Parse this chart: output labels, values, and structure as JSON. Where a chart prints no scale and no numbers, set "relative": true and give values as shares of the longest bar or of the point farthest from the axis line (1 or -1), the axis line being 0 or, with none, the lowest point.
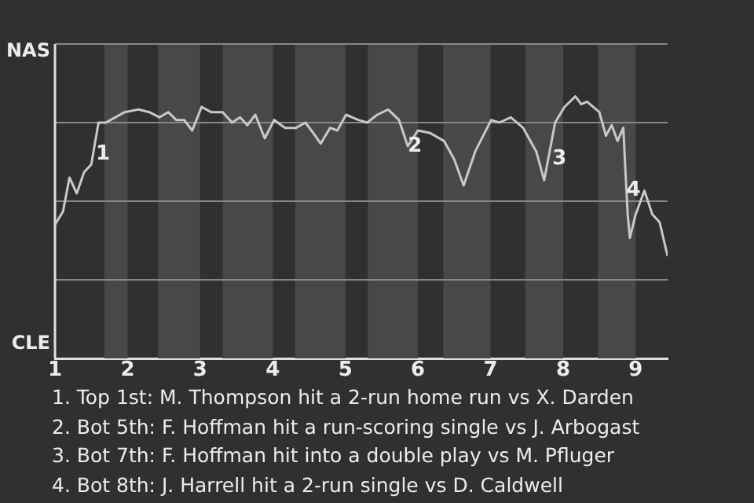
{
  "chart_data": {
    "type": "line",
    "relative": true,
    "x": [
      1.0,
      1.11,
      1.2,
      1.3,
      1.4,
      1.5,
      1.6,
      1.7,
      1.83,
      1.96,
      2.15,
      2.3,
      2.44,
      2.56,
      2.67,
      2.78,
      2.89,
      3.02,
      3.15,
      3.31,
      3.44,
      3.55,
      3.65,
      3.76,
      3.89,
      4.02,
      4.17,
      4.32,
      4.45,
      4.56,
      4.66,
      4.79,
      4.89,
      5.01,
      5.18,
      5.3,
      5.44,
      5.59,
      5.74,
      5.86,
      6.0,
      6.17,
      6.36,
      6.5,
      6.63,
      6.79,
      7.01,
      7.12,
      7.28,
      7.45,
      7.63,
      7.74,
      7.89,
      8.02,
      8.17,
      8.25,
      8.33,
      8.5,
      8.59,
      8.67,
      8.75,
      8.83,
      8.86,
      8.89,
      8.92,
      9.0,
      9.12,
      9.23,
      9.33,
      9.44
    ],
    "series": [
      {
        "color": "#c8c8c8",
        "values": [
          0.51,
          0.56,
          0.69,
          0.63,
          0.71,
          0.74,
          0.9,
          0.9,
          0.92,
          0.94,
          0.95,
          0.94,
          0.92,
          0.94,
          0.91,
          0.91,
          0.87,
          0.96,
          0.94,
          0.94,
          0.9,
          0.92,
          0.89,
          0.93,
          0.84,
          0.91,
          0.88,
          0.88,
          0.9,
          0.86,
          0.82,
          0.88,
          0.87,
          0.93,
          0.91,
          0.9,
          0.93,
          0.95,
          0.91,
          0.81,
          0.87,
          0.86,
          0.83,
          0.76,
          0.66,
          0.79,
          0.91,
          0.9,
          0.92,
          0.88,
          0.79,
          0.68,
          0.9,
          0.96,
          1,
          0.97,
          0.98,
          0.94,
          0.85,
          0.89,
          0.83,
          0.88,
          0.71,
          0.55,
          0.46,
          0.55,
          0.64,
          0.55,
          0.52,
          0.39
        ]
      }
    ],
    "xlim": [
      1,
      9.44
    ],
    "xticks": [
      1,
      2,
      3,
      4,
      5,
      6,
      7,
      8,
      9
    ],
    "grid": "y",
    "legend": false,
    "marker": "none",
    "line_style": "solid",
    "bands": [
      {
        "axis": "x",
        "from": 1.68,
        "to": 2,
        "color": "#4a4847"
      },
      {
        "axis": "x",
        "from": 2.42,
        "to": 3,
        "color": "#4a4847"
      },
      {
        "axis": "x",
        "from": 3.31,
        "to": 4,
        "color": "#4a4847"
      },
      {
        "axis": "x",
        "from": 4.31,
        "to": 5,
        "color": "#4a4847"
      },
      {
        "axis": "x",
        "from": 5.31,
        "to": 6,
        "color": "#4a4847"
      },
      {
        "axis": "x",
        "from": 6.35,
        "to": 7,
        "color": "#4a4847"
      },
      {
        "axis": "x",
        "from": 7.48,
        "to": 8,
        "color": "#4a4847"
      },
      {
        "axis": "x",
        "from": 8.48,
        "to": 9,
        "color": "#4a4847"
      }
    ],
    "annotations": [
      "NAS",
      "CLE",
      {
        "text": "1",
        "x": 1.66,
        "y": 0.78
      },
      {
        "text": "2",
        "x": 5.96,
        "y": 0.81
      },
      {
        "text": "3",
        "x": 7.95,
        "y": 0.76
      },
      {
        "text": "4",
        "x": 8.97,
        "y": 0.64
      },
      "1. Top 1st: M. Thompson hit a 2-run home run vs X. Darden",
      "2. Bot 5th: F. Hoffman hit a run-scoring single vs J. Arbogast",
      "3. Bot 7th: F. Hoffman hit into a double play vs M. Pfluger",
      "4. Bot 8th: J. Harrell hit a 2-run single vs D. Caldwell"
    ]
  }
}
